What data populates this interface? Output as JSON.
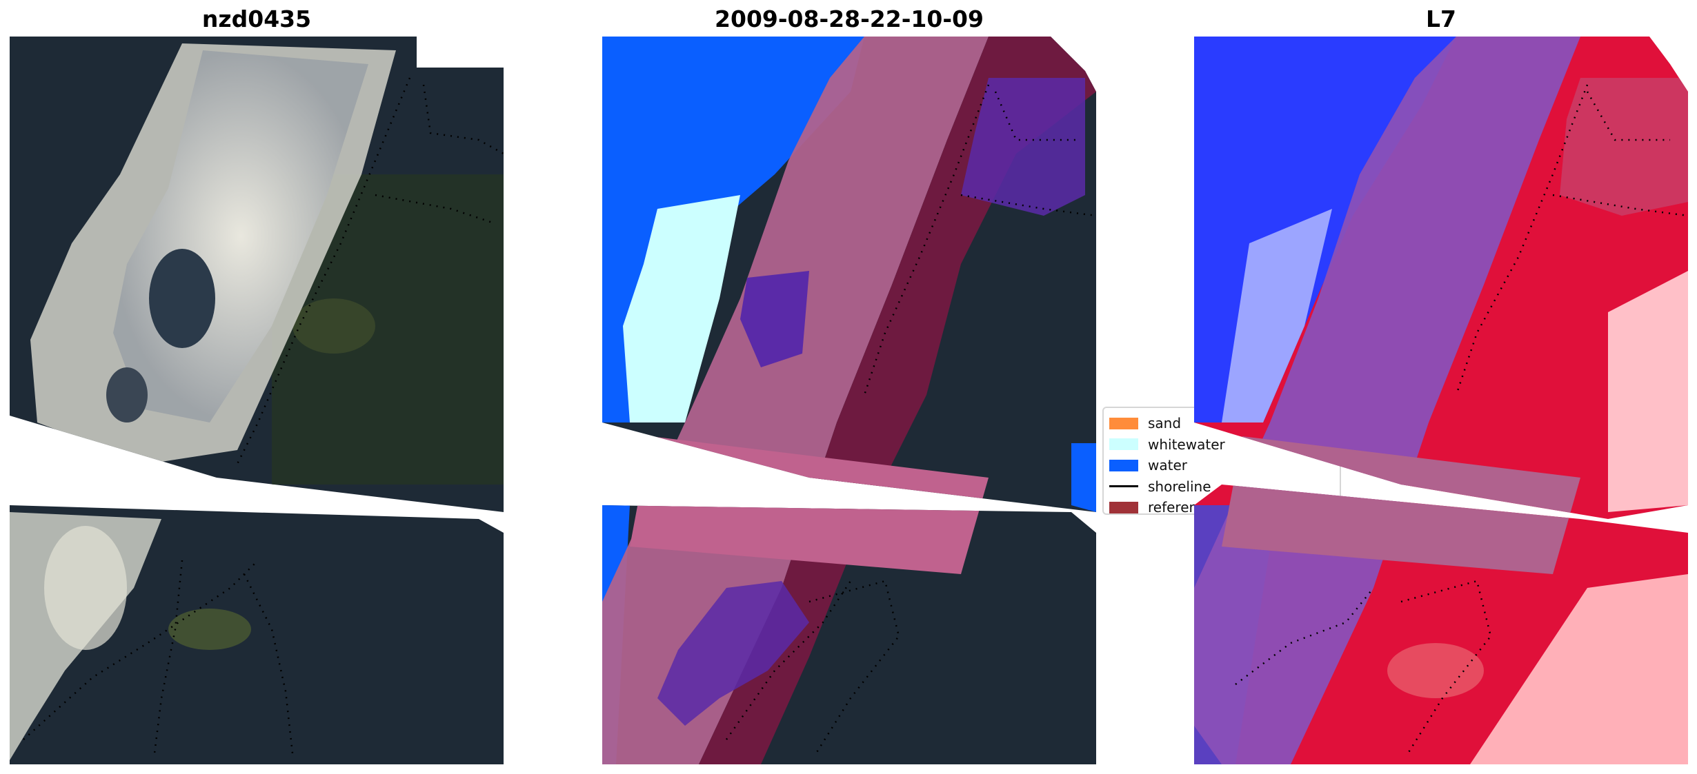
{
  "panels": [
    {
      "title": "nzd0435"
    },
    {
      "title": "2009-08-28-22-10-09"
    },
    {
      "title": "L7"
    }
  ],
  "legend": {
    "items": [
      {
        "label": "sand",
        "kind": "patch",
        "color": "#ff8c3a"
      },
      {
        "label": "whitewater",
        "kind": "patch",
        "color": "#ccffff"
      },
      {
        "label": "water",
        "kind": "patch",
        "color": "#0a5fff"
      },
      {
        "label": "shoreline",
        "kind": "line",
        "color": "#000000"
      },
      {
        "label": "reference shoreline buffer",
        "kind": "patch",
        "color": "#a03238"
      }
    ]
  },
  "colors": {
    "dark_vegetation": "#1e2a36",
    "surf_foam": "#dcdccc",
    "buffer_band": "#b0628e",
    "classified_water_blue": "#0a5fff",
    "purple_overlay": "#5a2aa8",
    "maroon_overlay": "#6e1a40",
    "mndwi_blue": "#2a3cff",
    "mndwi_red": "#e0103a"
  },
  "icons": [
    "legend-patch-icon",
    "legend-line-icon"
  ]
}
